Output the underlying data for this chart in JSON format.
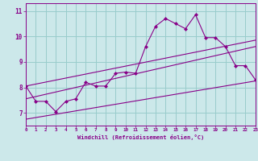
{
  "xlabel": "Windchill (Refroidissement éolien,°C)",
  "bg_color": "#cce8ea",
  "grid_color": "#99cccc",
  "line_color": "#880088",
  "x_min": 0,
  "x_max": 23,
  "y_min": 6.5,
  "y_max": 11.3,
  "main_x": [
    0,
    1,
    2,
    3,
    4,
    5,
    6,
    7,
    8,
    9,
    10,
    11,
    12,
    13,
    14,
    15,
    16,
    17,
    18,
    19,
    20,
    21,
    22,
    23
  ],
  "main_y": [
    8.05,
    7.45,
    7.45,
    7.05,
    7.45,
    7.55,
    8.2,
    8.05,
    8.05,
    8.55,
    8.6,
    8.55,
    9.6,
    10.4,
    10.7,
    10.5,
    10.3,
    10.85,
    9.95,
    9.95,
    9.6,
    8.85,
    8.85,
    8.3
  ],
  "line1_x": [
    0,
    23
  ],
  "line1_y": [
    6.75,
    8.25
  ],
  "line2_x": [
    0,
    23
  ],
  "line2_y": [
    7.55,
    9.6
  ],
  "line3_x": [
    0,
    23
  ],
  "line3_y": [
    8.05,
    9.85
  ]
}
